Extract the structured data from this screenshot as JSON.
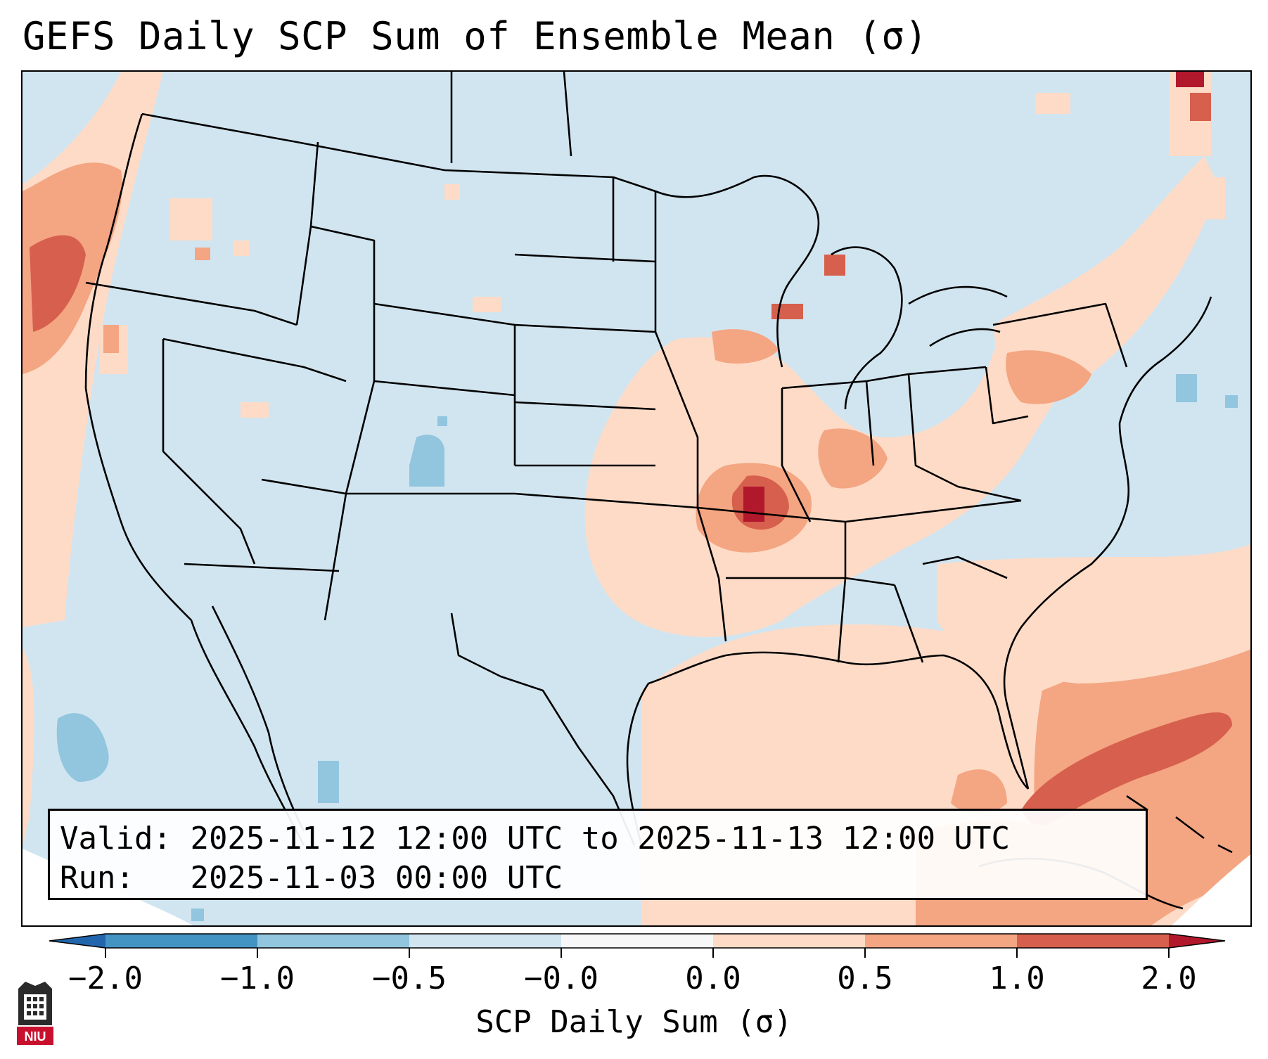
{
  "title": "GEFS Daily SCP Sum of Ensemble Mean (σ)",
  "info": {
    "valid_label": "Valid:",
    "valid_value": "2025-11-12 12:00 UTC to 2025-11-13 12:00 UTC",
    "run_label": "Run:",
    "run_value": "2025-11-03 00:00 UTC"
  },
  "colorbar": {
    "label": "SCP Daily Sum (σ)",
    "ticks": [
      "−2.0",
      "−1.0",
      "−0.5",
      "−0.0",
      "0.0",
      "0.5",
      "1.0",
      "2.0"
    ],
    "colors": [
      "#4393c3",
      "#92c5de",
      "#d1e5f0",
      "#f7f7f7",
      "#fddbc7",
      "#f4a582",
      "#d6604d",
      "#b2182b"
    ]
  },
  "logo": {
    "text": "NIU"
  },
  "icons": {
    "logo": "niu-tower-icon"
  }
}
